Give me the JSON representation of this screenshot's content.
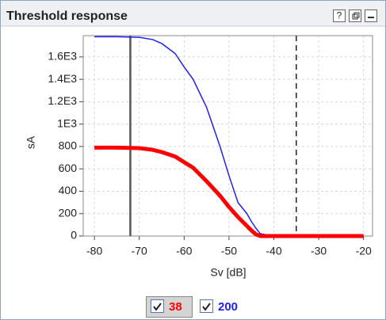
{
  "chart_data": {
    "type": "line",
    "title": "Threshold response",
    "x_label": "Sv [dB]",
    "y_label": "sA",
    "x": [
      -80,
      -75,
      -70,
      -67,
      -65,
      -62,
      -60,
      -58,
      -55,
      -52,
      -50,
      -48,
      -46,
      -45,
      -44,
      -43,
      -40,
      -30,
      -20
    ],
    "series": [
      {
        "name": "38",
        "color": "#ff0000",
        "width": 5,
        "values": [
          790,
          790,
          785,
          770,
          750,
          710,
          660,
          610,
          490,
          360,
          260,
          170,
          90,
          50,
          15,
          0,
          0,
          0,
          0
        ]
      },
      {
        "name": "200",
        "color": "#2020ee",
        "width": 1.5,
        "values": [
          1780,
          1780,
          1775,
          1755,
          1720,
          1630,
          1510,
          1400,
          1150,
          800,
          540,
          300,
          200,
          130,
          70,
          20,
          0,
          0,
          0
        ]
      }
    ],
    "xlim": [
      -82.5,
      -18
    ],
    "ylim": [
      0,
      1790
    ],
    "xticks": [
      -80,
      -70,
      -60,
      -50,
      -40,
      -30,
      -20
    ],
    "yticks": [
      0,
      200,
      400,
      600,
      800,
      {
        "value": 1000,
        "label": "1E3"
      },
      {
        "value": 1200,
        "label": "1.2E3"
      },
      {
        "value": 1400,
        "label": "1.4E3"
      },
      {
        "value": 1600,
        "label": "1.6E3"
      }
    ],
    "grid": true,
    "vlines": [
      {
        "x": -72,
        "style": "solid"
      },
      {
        "x": -35,
        "style": "dashed"
      }
    ]
  }
}
